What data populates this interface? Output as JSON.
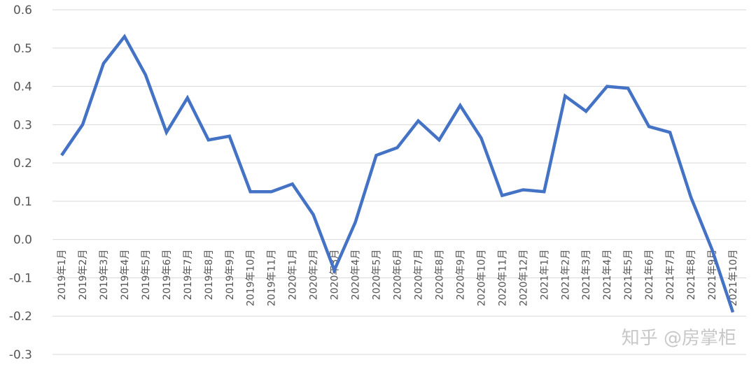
{
  "chart_data": {
    "type": "line",
    "title": "",
    "xlabel": "",
    "ylabel": "",
    "ylim": [
      -0.3,
      0.6
    ],
    "yticks": [
      "0.6",
      "0.5",
      "0.4",
      "0.3",
      "0.2",
      "0.1",
      "0.0",
      "-0.1",
      "-0.2",
      "-0.3"
    ],
    "grid": "horizontal",
    "categories": [
      "2019年1月",
      "2019年2月",
      "2019年3月",
      "2019年4月",
      "2019年5月",
      "2019年6月",
      "2019年7月",
      "2019年8月",
      "2019年9月",
      "2019年10月",
      "2019年11月",
      "2020年1月",
      "2020年2月",
      "2020年3月",
      "2020年4月",
      "2020年5月",
      "2020年6月",
      "2020年7月",
      "2020年8月",
      "2020年9月",
      "2020年10月",
      "2020年11月",
      "2020年12月",
      "2021年1月",
      "2021年2月",
      "2021年3月",
      "2021年4月",
      "2021年5月",
      "2021年6月",
      "2021年7月",
      "2021年8月",
      "2021年9月",
      "2021年10月"
    ],
    "series": [
      {
        "color": "#4472c4",
        "values": [
          0.22,
          0.3,
          0.46,
          0.53,
          0.43,
          0.28,
          0.37,
          0.26,
          0.27,
          0.125,
          0.125,
          0.145,
          0.065,
          -0.08,
          0.045,
          0.22,
          0.24,
          0.31,
          0.26,
          0.35,
          0.265,
          0.115,
          0.13,
          0.125,
          0.375,
          0.335,
          0.4,
          0.395,
          0.295,
          0.28,
          0.11,
          -0.025,
          -0.19
        ]
      }
    ]
  },
  "watermark": "知乎 @房掌柜"
}
